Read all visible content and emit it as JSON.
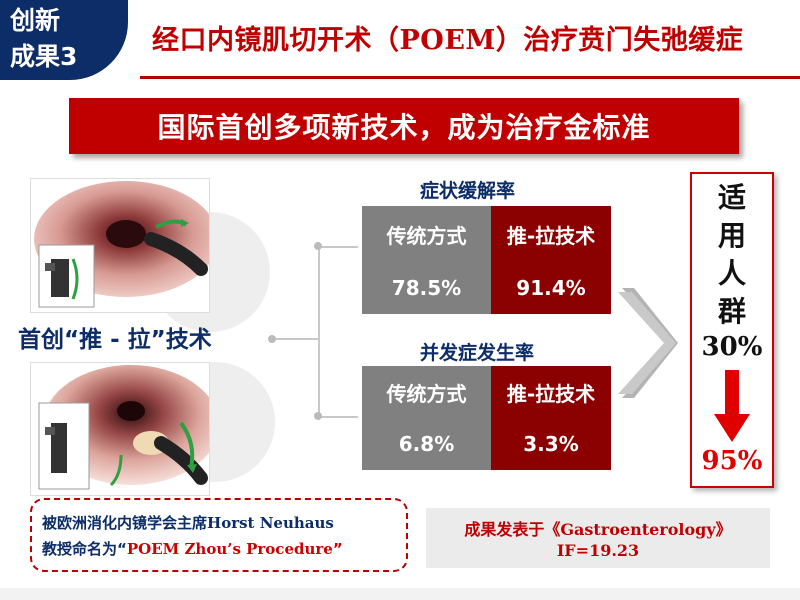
{
  "header": {
    "badge_line1": "创新",
    "badge_line2": "成果3",
    "title_prefix": "经口内镜肌切开术（",
    "title_en": "POEM",
    "title_suffix": "）治疗贲门失弛缓症"
  },
  "banner": {
    "text": "国际首创多项新技术，成为治疗金标准"
  },
  "left": {
    "technique_label": "首创“推 - 拉”技术"
  },
  "symptom_table": {
    "title": "症状缓解率",
    "headers": [
      "传统方式",
      "推-拉技术"
    ],
    "values": [
      "78.5%",
      "91.4%"
    ]
  },
  "complication_table": {
    "title": "并发症发生率",
    "headers": [
      "传统方式",
      "推-拉技术"
    ],
    "values": [
      "6.8%",
      "3.3%"
    ]
  },
  "applicable": {
    "chars": [
      "适",
      "用",
      "人",
      "群"
    ],
    "from_pct": "30%",
    "to_pct": "95%"
  },
  "note": {
    "line1_cn": "被欧洲消化内镜学会主席",
    "line1_en": "Horst Neuhaus",
    "line2_cn": "教授命名为“",
    "line2_en": "POEM Zhou’s Procedure",
    "line2_end": "”"
  },
  "publication": {
    "line1_cn": "成果发表于《",
    "line1_en": "Gastroenterology",
    "line1_end": "》",
    "line2": "IF=19.23"
  },
  "colors": {
    "navy": "#0c2d67",
    "red": "#c00000",
    "dark_red": "#8b0000",
    "gray": "#808080"
  }
}
